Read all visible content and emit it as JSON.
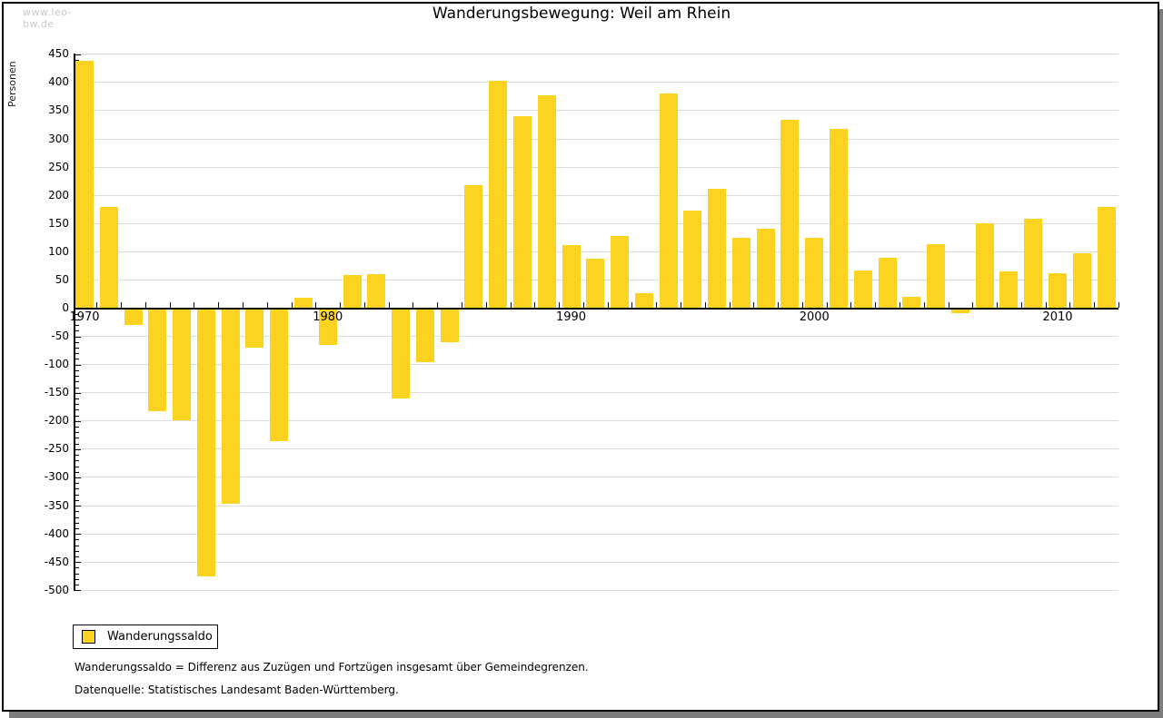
{
  "watermark": "www.leo-bw.de",
  "title": "Wanderungsbewegung: Weil am Rhein",
  "legend": {
    "label": "Wanderungssaldo"
  },
  "footnotes": [
    "Wanderungssaldo = Differenz aus Zuzügen und Fortzügen insgesamt über Gemeindegrenzen.",
    "Datenquelle: Statistisches Landesamt Baden-Württemberg."
  ],
  "colors": {
    "bar": "#FCD320",
    "grid": "#DCDCDC",
    "axis": "#000000",
    "watermark": "#C9C9C9",
    "shadow": "#7D7D7D",
    "frame": "#000000"
  },
  "chart_data": {
    "type": "bar",
    "title": "Wanderungsbewegung: Weil am Rhein",
    "ylabel": "Personen",
    "xlabel": "",
    "series_name": "Wanderungssaldo",
    "x": [
      1970,
      1971,
      1972,
      1973,
      1974,
      1975,
      1976,
      1977,
      1978,
      1979,
      1980,
      1981,
      1982,
      1983,
      1984,
      1985,
      1986,
      1987,
      1988,
      1989,
      1990,
      1991,
      1992,
      1993,
      1994,
      1995,
      1996,
      1997,
      1998,
      1999,
      2000,
      2001,
      2002,
      2003,
      2004,
      2005,
      2006,
      2007,
      2008,
      2009,
      2010,
      2011,
      2012
    ],
    "values": [
      438,
      179,
      -30,
      -183,
      -198,
      -475,
      -347,
      -70,
      -236,
      19,
      -65,
      58,
      60,
      -160,
      -96,
      -61,
      218,
      403,
      341,
      378,
      111,
      88,
      128,
      26,
      380,
      173,
      212,
      124,
      140,
      334,
      125,
      318,
      67,
      90,
      20,
      113,
      -9,
      151,
      65,
      159,
      62,
      97,
      180
    ],
    "ylim": [
      -500,
      450
    ],
    "ytick_step": 50,
    "ytick_minor_step": 10,
    "x_labeled_ticks": [
      1970,
      1980,
      1990,
      2000,
      2010
    ],
    "grid": true,
    "legend_position": "bottom-left"
  }
}
